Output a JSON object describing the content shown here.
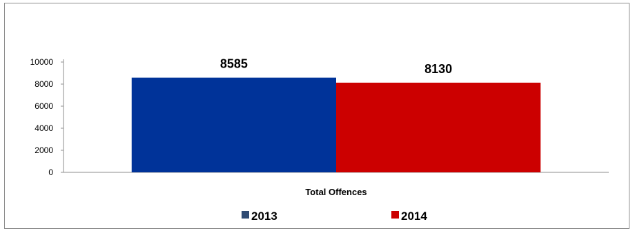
{
  "chart_data": {
    "type": "bar",
    "categories": [
      "Total Offences"
    ],
    "series": [
      {
        "name": "2013",
        "values": [
          8585
        ],
        "color": "#003399"
      },
      {
        "name": "2014",
        "values": [
          8130
        ],
        "color": "#cc0000"
      }
    ],
    "title": "",
    "xlabel": "",
    "ylabel": "",
    "ylim": [
      0,
      10000
    ],
    "yticks": [
      0,
      2000,
      4000,
      6000,
      8000,
      10000
    ],
    "data_labels": [
      "8585",
      "8130"
    ],
    "legend": {
      "position": "bottom",
      "entries": [
        {
          "label": "2013",
          "color": "#2f4b73"
        },
        {
          "label": "2014",
          "color": "#cc0000"
        }
      ]
    },
    "grid": false
  }
}
